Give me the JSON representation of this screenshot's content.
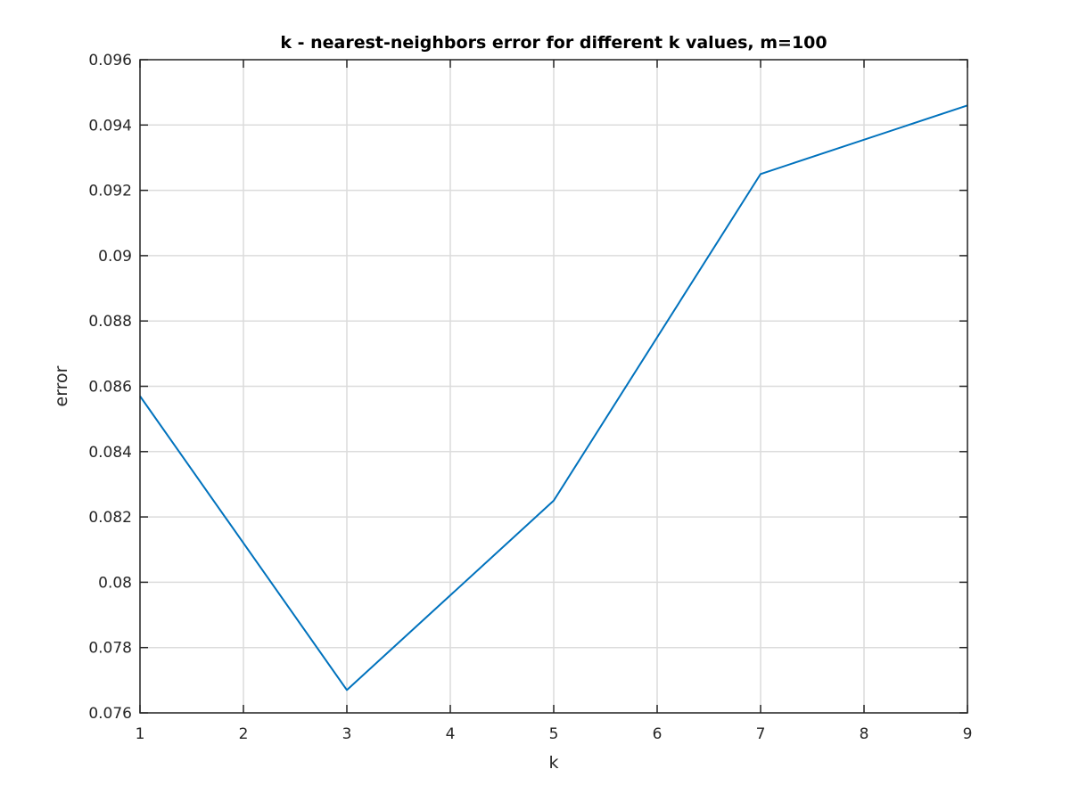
{
  "chart_data": {
    "type": "line",
    "title": "k - nearest-neighbors error for different k values, m=100",
    "xlabel": "k",
    "ylabel": "error",
    "xlim": [
      1,
      9
    ],
    "ylim": [
      0.076,
      0.096
    ],
    "xticks": [
      1,
      2,
      3,
      4,
      5,
      6,
      7,
      8,
      9
    ],
    "xtick_labels": [
      "1",
      "2",
      "3",
      "4",
      "5",
      "6",
      "7",
      "8",
      "9"
    ],
    "yticks": [
      0.076,
      0.078,
      0.08,
      0.082,
      0.084,
      0.086,
      0.088,
      0.09,
      0.092,
      0.094,
      0.096
    ],
    "ytick_labels": [
      "0.076",
      "0.078",
      "0.08",
      "0.082",
      "0.084",
      "0.086",
      "0.088",
      "0.09",
      "0.092",
      "0.094",
      "0.096"
    ],
    "grid": true,
    "series": [
      {
        "color": "#0072BD",
        "x": [
          1,
          3,
          5,
          7,
          9
        ],
        "y": [
          0.0857,
          0.0767,
          0.0825,
          0.0925,
          0.0946
        ]
      }
    ]
  }
}
